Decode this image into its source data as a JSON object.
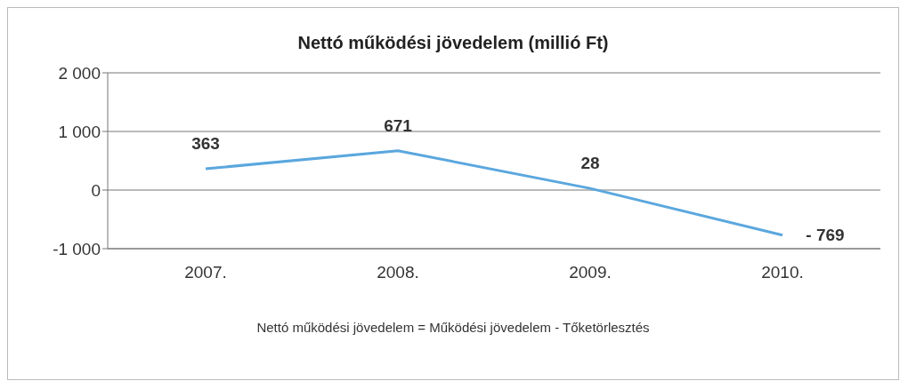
{
  "chart_data": {
    "type": "line",
    "title": "Nettó működési jövedelem (millió Ft)",
    "categories": [
      "2007.",
      "2008.",
      "2009.",
      "2010."
    ],
    "series": [
      {
        "color": "#5aa7de",
        "values": [
          363,
          671,
          28,
          -769
        ],
        "value_labels": [
          "363",
          "671",
          "28",
          "- 769"
        ]
      }
    ],
    "ylim": [
      -1000,
      2000
    ],
    "yticks": [
      {
        "value": -1000,
        "label": "-1 000"
      },
      {
        "value": 0,
        "label": "0"
      },
      {
        "value": 1000,
        "label": "1 000"
      },
      {
        "value": 2000,
        "label": "2 000"
      }
    ],
    "grid": "y",
    "legend": false,
    "marker": "none",
    "line_style": "solid",
    "annotations": [
      "Nettó működési jövedelem = Működési jövedelem - Tőketörlesztés"
    ]
  }
}
